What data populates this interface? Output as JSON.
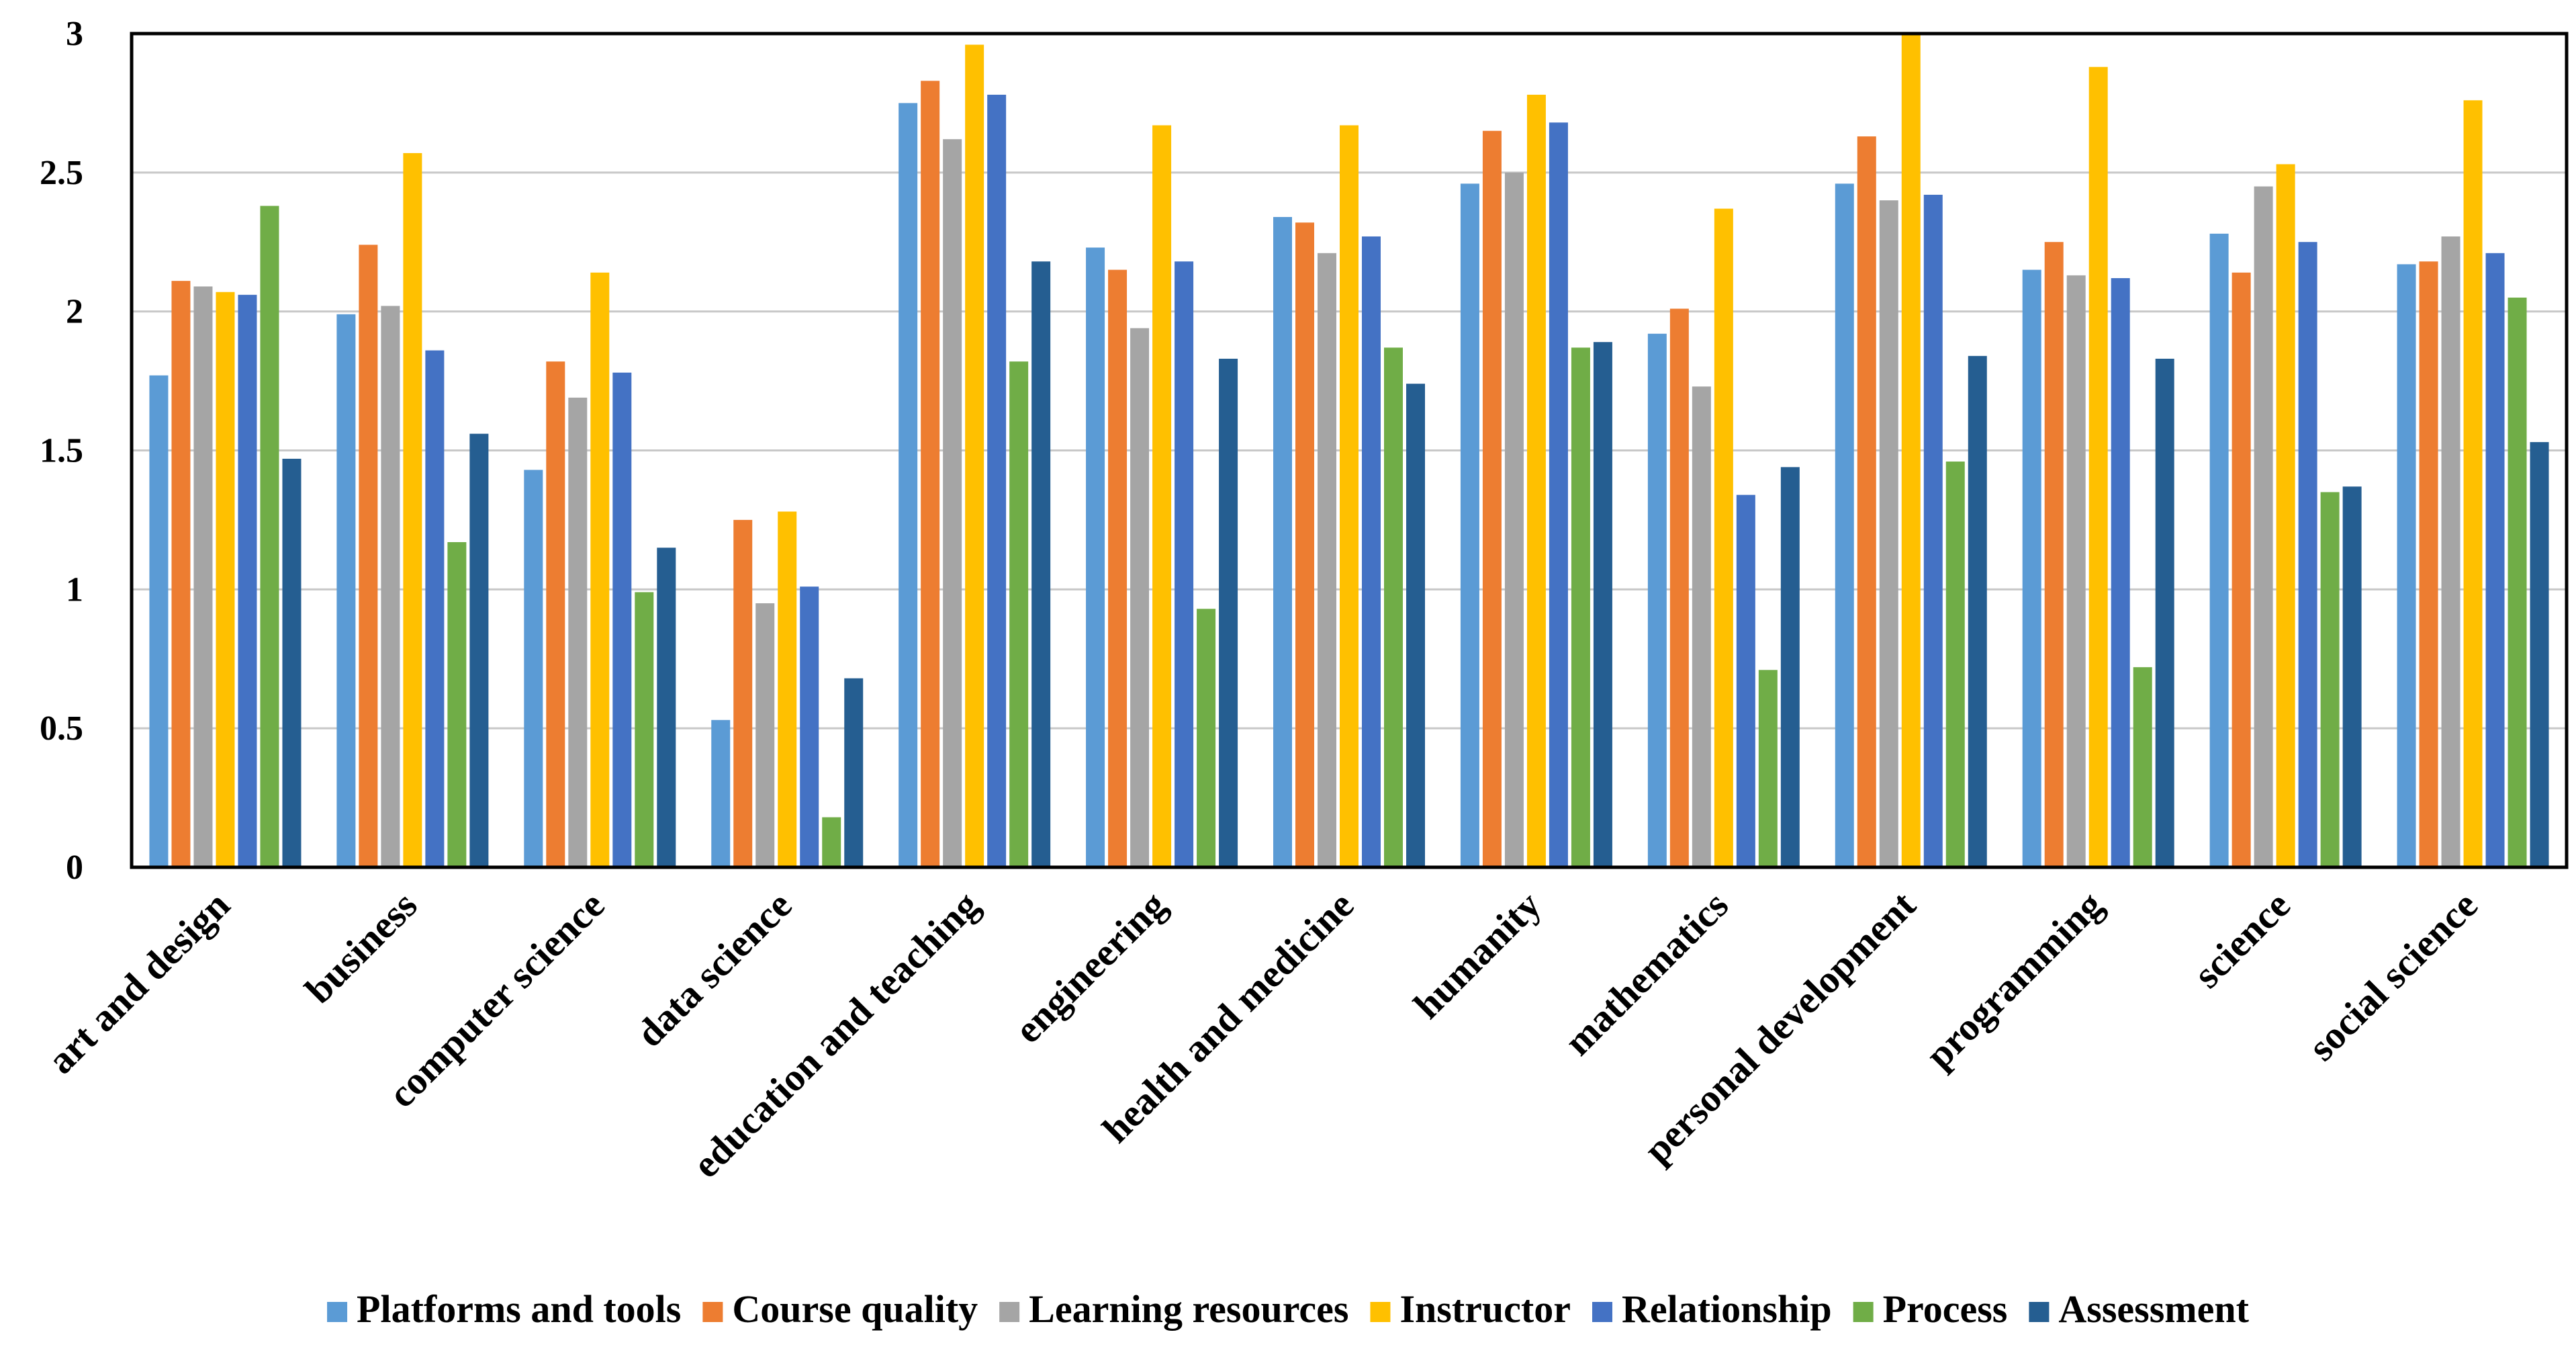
{
  "chart_data": {
    "type": "bar",
    "title": "",
    "xlabel": "",
    "ylabel": "",
    "ylim": [
      0,
      3
    ],
    "yticks": [
      "0",
      "0.5",
      "1",
      "1.5",
      "2",
      "2.5",
      "3"
    ],
    "grid": true,
    "legend_position": "bottom",
    "categories": [
      "art and design",
      "business",
      "computer science",
      "data science",
      "education and teaching",
      "engineering",
      "health and medicine",
      "humanity",
      "mathematics",
      "personal development",
      "programming",
      "science",
      "social science"
    ],
    "series": [
      {
        "name": "Platforms and tools",
        "color": "#5B9BD5",
        "values": [
          1.77,
          1.99,
          1.43,
          0.53,
          2.75,
          2.23,
          2.34,
          2.46,
          1.92,
          2.46,
          2.15,
          2.28,
          2.17
        ]
      },
      {
        "name": "Course quality",
        "color": "#ED7D31",
        "values": [
          2.11,
          2.24,
          1.82,
          1.25,
          2.83,
          2.15,
          2.32,
          2.65,
          2.01,
          2.63,
          2.25,
          2.14,
          2.18
        ]
      },
      {
        "name": "Learning resources",
        "color": "#A5A5A5",
        "values": [
          2.09,
          2.02,
          1.69,
          0.95,
          2.62,
          1.94,
          2.21,
          2.5,
          1.73,
          2.4,
          2.13,
          2.45,
          2.27
        ]
      },
      {
        "name": "Instructor",
        "color": "#FFC000",
        "values": [
          2.07,
          2.57,
          2.14,
          1.28,
          2.96,
          2.67,
          2.67,
          2.78,
          2.37,
          3.0,
          2.88,
          2.53,
          2.76
        ]
      },
      {
        "name": "Relationship",
        "color": "#4472C4",
        "values": [
          2.06,
          1.86,
          1.78,
          1.01,
          2.78,
          2.18,
          2.27,
          2.68,
          1.34,
          2.42,
          2.12,
          2.25,
          2.21
        ]
      },
      {
        "name": "Process",
        "color": "#70AD47",
        "values": [
          2.38,
          1.17,
          0.99,
          0.18,
          1.82,
          0.93,
          1.87,
          1.87,
          0.71,
          1.46,
          0.72,
          1.35,
          2.05
        ]
      },
      {
        "name": "Assessment",
        "color": "#255E91",
        "values": [
          1.47,
          1.56,
          1.15,
          0.68,
          2.18,
          1.83,
          1.74,
          1.89,
          1.44,
          1.84,
          1.83,
          1.37,
          1.53
        ]
      }
    ]
  }
}
